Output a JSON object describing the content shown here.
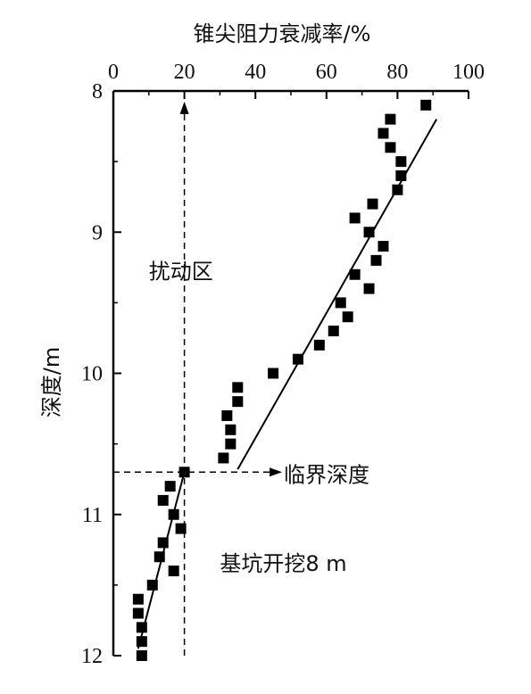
{
  "chart_data": {
    "type": "scatter",
    "title": "",
    "xlabel": "锥尖阻力衰减率/%",
    "ylabel": "深度/m",
    "xlim": [
      0,
      100
    ],
    "ylim": [
      8,
      12
    ],
    "y_inverted": true,
    "x_axis_position": "top",
    "x_ticks": [
      0,
      20,
      40,
      60,
      80,
      100
    ],
    "y_ticks": [
      8,
      9,
      10,
      11,
      12
    ],
    "grid": false,
    "marker": "square",
    "marker_color": "#000000",
    "points": [
      {
        "x": 88,
        "y": 8.1
      },
      {
        "x": 78,
        "y": 8.2
      },
      {
        "x": 76,
        "y": 8.3
      },
      {
        "x": 78,
        "y": 8.4
      },
      {
        "x": 81,
        "y": 8.5
      },
      {
        "x": 81,
        "y": 8.6
      },
      {
        "x": 80,
        "y": 8.7
      },
      {
        "x": 73,
        "y": 8.8
      },
      {
        "x": 68,
        "y": 8.9
      },
      {
        "x": 72,
        "y": 9.0
      },
      {
        "x": 76,
        "y": 9.1
      },
      {
        "x": 74,
        "y": 9.2
      },
      {
        "x": 68,
        "y": 9.3
      },
      {
        "x": 72,
        "y": 9.4
      },
      {
        "x": 64,
        "y": 9.5
      },
      {
        "x": 66,
        "y": 9.6
      },
      {
        "x": 62,
        "y": 9.7
      },
      {
        "x": 58,
        "y": 9.8
      },
      {
        "x": 52,
        "y": 9.9
      },
      {
        "x": 45,
        "y": 10.0
      },
      {
        "x": 35,
        "y": 10.1
      },
      {
        "x": 35,
        "y": 10.2
      },
      {
        "x": 32,
        "y": 10.3
      },
      {
        "x": 33,
        "y": 10.4
      },
      {
        "x": 33,
        "y": 10.5
      },
      {
        "x": 31,
        "y": 10.6
      },
      {
        "x": 20,
        "y": 10.7
      },
      {
        "x": 16,
        "y": 10.8
      },
      {
        "x": 14,
        "y": 10.9
      },
      {
        "x": 17,
        "y": 11.0
      },
      {
        "x": 19,
        "y": 11.1
      },
      {
        "x": 14,
        "y": 11.2
      },
      {
        "x": 13,
        "y": 11.3
      },
      {
        "x": 17,
        "y": 11.4
      },
      {
        "x": 11,
        "y": 11.5
      },
      {
        "x": 7,
        "y": 11.6
      },
      {
        "x": 7,
        "y": 11.7
      },
      {
        "x": 8,
        "y": 11.8
      },
      {
        "x": 8,
        "y": 11.9
      },
      {
        "x": 8,
        "y": 12.0
      }
    ],
    "fit_lines": [
      {
        "x1": 7,
        "y1": 11.95,
        "x2": 20,
        "y2": 10.7
      },
      {
        "x1": 35,
        "y1": 10.68,
        "x2": 91,
        "y2": 8.2
      }
    ],
    "critical_depth_guides": [
      {
        "orientation": "vertical",
        "x": 20,
        "from_y": 12.0,
        "to_y": 8.1,
        "style": "dashed",
        "arrow": "end"
      },
      {
        "orientation": "horizontal",
        "y": 10.7,
        "from_x": 0,
        "to_x": 46,
        "style": "dashed",
        "arrow": "end"
      }
    ],
    "annotations": [
      {
        "text": "扰动区",
        "x": 10,
        "y": 9.28
      },
      {
        "text": "临界深度",
        "x": 48,
        "y": 10.72
      },
      {
        "text": "基坑开挖8 m",
        "x": 30,
        "y": 11.35
      }
    ]
  }
}
